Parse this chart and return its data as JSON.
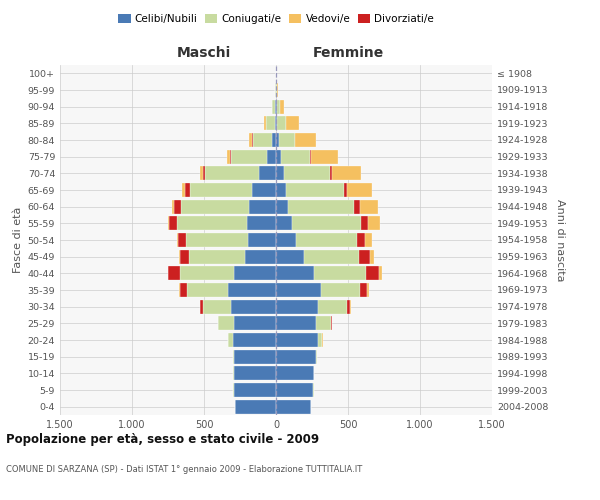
{
  "age_groups": [
    "0-4",
    "5-9",
    "10-14",
    "15-19",
    "20-24",
    "25-29",
    "30-34",
    "35-39",
    "40-44",
    "45-49",
    "50-54",
    "55-59",
    "60-64",
    "65-69",
    "70-74",
    "75-79",
    "80-84",
    "85-89",
    "90-94",
    "95-99",
    "100+"
  ],
  "birth_years": [
    "2004-2008",
    "1999-2003",
    "1994-1998",
    "1989-1993",
    "1984-1988",
    "1979-1983",
    "1974-1978",
    "1969-1973",
    "1964-1968",
    "1959-1963",
    "1954-1958",
    "1949-1953",
    "1944-1948",
    "1939-1943",
    "1934-1938",
    "1929-1933",
    "1924-1928",
    "1919-1923",
    "1914-1918",
    "1909-1913",
    "≤ 1908"
  ],
  "male": {
    "celibi": [
      285,
      295,
      295,
      295,
      300,
      290,
      310,
      330,
      290,
      215,
      195,
      200,
      190,
      170,
      120,
      60,
      30,
      10,
      5,
      2,
      0
    ],
    "coniugati": [
      0,
      2,
      2,
      5,
      30,
      110,
      200,
      290,
      380,
      390,
      430,
      490,
      470,
      430,
      370,
      250,
      130,
      60,
      20,
      3,
      0
    ],
    "vedovi": [
      0,
      0,
      0,
      0,
      0,
      1,
      1,
      2,
      3,
      5,
      8,
      10,
      15,
      20,
      25,
      25,
      20,
      10,
      5,
      2,
      0
    ],
    "divorziati": [
      0,
      0,
      0,
      0,
      2,
      5,
      15,
      50,
      80,
      65,
      55,
      50,
      45,
      30,
      15,
      8,
      5,
      2,
      0,
      0,
      0
    ]
  },
  "female": {
    "nubili": [
      240,
      260,
      265,
      280,
      290,
      275,
      290,
      310,
      265,
      195,
      140,
      110,
      85,
      70,
      55,
      35,
      20,
      10,
      5,
      2,
      0
    ],
    "coniugate": [
      0,
      2,
      2,
      5,
      30,
      110,
      205,
      270,
      360,
      380,
      420,
      480,
      460,
      400,
      320,
      200,
      110,
      60,
      20,
      5,
      0
    ],
    "vedove": [
      0,
      0,
      0,
      0,
      1,
      2,
      5,
      10,
      20,
      30,
      50,
      80,
      120,
      175,
      200,
      185,
      140,
      90,
      30,
      5,
      0
    ],
    "divorziate": [
      0,
      0,
      0,
      0,
      2,
      5,
      20,
      55,
      90,
      75,
      60,
      50,
      40,
      25,
      15,
      8,
      5,
      2,
      0,
      0,
      0
    ]
  },
  "colors": {
    "celibi": "#4a7ab5",
    "coniugati": "#c8dba0",
    "vedovi": "#f5c060",
    "divorziati": "#cc2020"
  },
  "xlim": 1500,
  "title": "Popolazione per età, sesso e stato civile - 2009",
  "subtitle": "COMUNE DI SARZANA (SP) - Dati ISTAT 1° gennaio 2009 - Elaborazione TUTTITALIA.IT",
  "ylabel_left": "Fasce di età",
  "ylabel_right": "Anni di nascita",
  "xlabel_left": "Maschi",
  "xlabel_right": "Femmine",
  "legend_labels": [
    "Celibi/Nubili",
    "Coniugati/e",
    "Vedovi/e",
    "Divorziati/e"
  ],
  "background_color": "#ffffff",
  "grid_color": "#cccccc"
}
